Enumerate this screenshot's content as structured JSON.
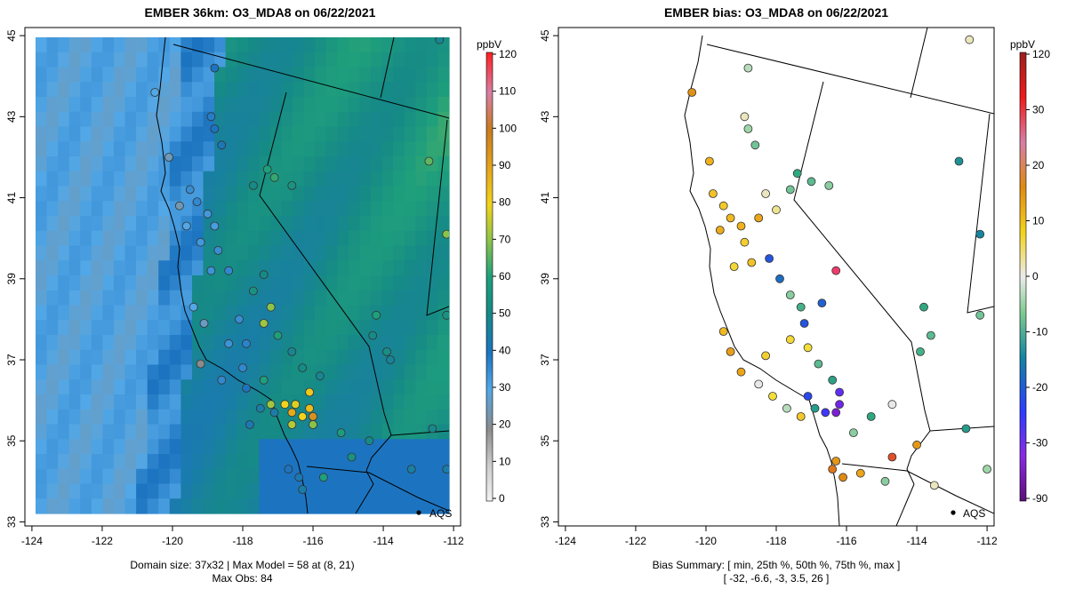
{
  "chart_data": [
    {
      "type": "heatmap",
      "title": "EMBER 36km: O3_MDA8 on 06/22/2021",
      "x_ticks": [
        "-124",
        "-122",
        "-120",
        "-118",
        "-116",
        "-114",
        "-112"
      ],
      "y_ticks": [
        "33",
        "35",
        "37",
        "39",
        "41",
        "43",
        "45"
      ],
      "xlim": [
        -124.2,
        -111.8
      ],
      "ylim": [
        32.9,
        45.2
      ],
      "colorbar": {
        "unit": "ppbV",
        "ticks": [
          "0",
          "10",
          "20",
          "30",
          "40",
          "50",
          "60",
          "70",
          "80",
          "90",
          "100",
          "110",
          "120"
        ],
        "range": [
          0,
          120
        ]
      },
      "legend": "AQS",
      "footer_line1": "Domain size: 37x32 | Max Model = 58 at (8, 21)",
      "footer_line2": "Max Obs: 84",
      "domain_size": [
        37,
        32
      ],
      "max_model": 58,
      "max_obs": 84,
      "sites": [
        {
          "lon": -120.5,
          "lat": 43.6,
          "v": 30
        },
        {
          "lon": -118.8,
          "lat": 44.2,
          "v": 40
        },
        {
          "lon": -118.9,
          "lat": 43.0,
          "v": 38
        },
        {
          "lon": -118.8,
          "lat": 42.7,
          "v": 40
        },
        {
          "lon": -118.6,
          "lat": 42.3,
          "v": 42
        },
        {
          "lon": -119.5,
          "lat": 41.2,
          "v": 35
        },
        {
          "lon": -119.3,
          "lat": 40.9,
          "v": 36
        },
        {
          "lon": -119.0,
          "lat": 40.6,
          "v": 33
        },
        {
          "lon": -118.8,
          "lat": 40.3,
          "v": 32
        },
        {
          "lon": -119.6,
          "lat": 40.3,
          "v": 30
        },
        {
          "lon": -119.2,
          "lat": 39.9,
          "v": 33
        },
        {
          "lon": -118.7,
          "lat": 39.7,
          "v": 35
        },
        {
          "lon": -118.9,
          "lat": 39.2,
          "v": 34
        },
        {
          "lon": -118.4,
          "lat": 39.2,
          "v": 36
        },
        {
          "lon": -117.4,
          "lat": 39.1,
          "v": 50
        },
        {
          "lon": -117.7,
          "lat": 38.7,
          "v": 52
        },
        {
          "lon": -117.2,
          "lat": 38.3,
          "v": 60
        },
        {
          "lon": -117.4,
          "lat": 37.9,
          "v": 62
        },
        {
          "lon": -116.6,
          "lat": 37.2,
          "v": 48
        },
        {
          "lon": -118.1,
          "lat": 38.0,
          "v": 35
        },
        {
          "lon": -117.9,
          "lat": 37.4,
          "v": 37
        },
        {
          "lon": -117.0,
          "lat": 37.6,
          "v": 55
        },
        {
          "lon": -116.3,
          "lat": 36.8,
          "v": 50
        },
        {
          "lon": -116.1,
          "lat": 36.2,
          "v": 72
        },
        {
          "lon": -116.1,
          "lat": 35.8,
          "v": 75
        },
        {
          "lon": -116.3,
          "lat": 35.6,
          "v": 70
        },
        {
          "lon": -116.6,
          "lat": 35.7,
          "v": 78
        },
        {
          "lon": -116.8,
          "lat": 35.9,
          "v": 70
        },
        {
          "lon": -116.5,
          "lat": 35.9,
          "v": 68
        },
        {
          "lon": -116.0,
          "lat": 35.6,
          "v": 84
        },
        {
          "lon": -117.2,
          "lat": 35.9,
          "v": 62
        },
        {
          "lon": -117.5,
          "lat": 35.8,
          "v": 44
        },
        {
          "lon": -117.9,
          "lat": 36.3,
          "v": 40
        },
        {
          "lon": -118.6,
          "lat": 36.5,
          "v": 36
        },
        {
          "lon": -117.4,
          "lat": 36.5,
          "v": 55
        },
        {
          "lon": -116.6,
          "lat": 35.4,
          "v": 64
        },
        {
          "lon": -116.0,
          "lat": 35.4,
          "v": 60
        },
        {
          "lon": -116.4,
          "lat": 34.1,
          "v": 42
        },
        {
          "lon": -116.3,
          "lat": 33.8,
          "v": 44
        },
        {
          "lon": -116.7,
          "lat": 34.3,
          "v": 40
        },
        {
          "lon": -115.7,
          "lat": 34.1,
          "v": 55
        },
        {
          "lon": -114.9,
          "lat": 34.6,
          "v": 52
        },
        {
          "lon": -115.2,
          "lat": 35.2,
          "v": 54
        },
        {
          "lon": -114.4,
          "lat": 35.0,
          "v": 50
        },
        {
          "lon": -115.8,
          "lat": 36.6,
          "v": 48
        },
        {
          "lon": -114.3,
          "lat": 37.6,
          "v": 50
        },
        {
          "lon": -113.9,
          "lat": 37.2,
          "v": 51
        },
        {
          "lon": -114.2,
          "lat": 38.1,
          "v": 55
        },
        {
          "lon": -112.7,
          "lat": 41.9,
          "v": 58
        },
        {
          "lon": -112.2,
          "lat": 40.1,
          "v": 60
        },
        {
          "lon": -112.4,
          "lat": 44.9,
          "v": 48
        },
        {
          "lon": -112.2,
          "lat": 38.1,
          "v": 52
        },
        {
          "lon": -113.2,
          "lat": 34.3,
          "v": 45
        },
        {
          "lon": -112.2,
          "lat": 34.3,
          "v": 44
        },
        {
          "lon": -112.6,
          "lat": 35.3,
          "v": 49
        },
        {
          "lon": -113.8,
          "lat": 37.0,
          "v": 47
        },
        {
          "lon": -117.3,
          "lat": 41.7,
          "v": 55
        },
        {
          "lon": -117.7,
          "lat": 41.3,
          "v": 50
        },
        {
          "lon": -116.6,
          "lat": 41.3,
          "v": 52
        },
        {
          "lon": -117.1,
          "lat": 41.5,
          "v": 56
        },
        {
          "lon": -120.1,
          "lat": 42.0,
          "v": 25
        },
        {
          "lon": -119.8,
          "lat": 40.8,
          "v": 24
        },
        {
          "lon": -119.4,
          "lat": 38.3,
          "v": 30
        },
        {
          "lon": -119.1,
          "lat": 37.9,
          "v": 26
        },
        {
          "lon": -118.4,
          "lat": 37.4,
          "v": 34
        },
        {
          "lon": -119.2,
          "lat": 36.9,
          "v": 20
        },
        {
          "lon": -118.0,
          "lat": 36.8,
          "v": 36
        },
        {
          "lon": -117.8,
          "lat": 35.4,
          "v": 42
        },
        {
          "lon": -117.1,
          "lat": 35.7,
          "v": 44
        }
      ]
    },
    {
      "type": "scatter",
      "title": "EMBER bias: O3_MDA8 on 06/22/2021",
      "x_ticks": [
        "-124",
        "-122",
        "-120",
        "-118",
        "-116",
        "-114",
        "-112"
      ],
      "y_ticks": [
        "33",
        "35",
        "37",
        "39",
        "41",
        "43",
        "45"
      ],
      "xlim": [
        -124.2,
        -111.8
      ],
      "ylim": [
        32.9,
        45.2
      ],
      "colorbar": {
        "unit": "ppbV",
        "ticks": [
          "-90",
          "-30",
          "-20",
          "-10",
          "0",
          "10",
          "20",
          "30",
          "120"
        ]
      },
      "legend": "AQS",
      "footer_line1": "Bias Summary: [ min, 25th %, 50th %, 75th %, max ]",
      "footer_line2": "[ -32,   -6.6,   -3,   3.5,   26 ]",
      "bias_summary": {
        "min": -32,
        "p25": -6.6,
        "p50": -3,
        "p75": 3.5,
        "max": 26
      },
      "sites": [
        {
          "lon": -120.4,
          "lat": 43.6,
          "v": 15
        },
        {
          "lon": -118.8,
          "lat": 44.2,
          "v": -2
        },
        {
          "lon": -118.9,
          "lat": 43.0,
          "v": 1
        },
        {
          "lon": -118.8,
          "lat": 42.7,
          "v": -3
        },
        {
          "lon": -118.6,
          "lat": 42.3,
          "v": -5
        },
        {
          "lon": -119.9,
          "lat": 41.9,
          "v": 10
        },
        {
          "lon": -119.8,
          "lat": 41.1,
          "v": 8
        },
        {
          "lon": -119.5,
          "lat": 40.8,
          "v": 7
        },
        {
          "lon": -119.3,
          "lat": 40.5,
          "v": 9
        },
        {
          "lon": -119.0,
          "lat": 40.3,
          "v": 10
        },
        {
          "lon": -119.6,
          "lat": 40.2,
          "v": 11
        },
        {
          "lon": -118.9,
          "lat": 39.9,
          "v": 6
        },
        {
          "lon": -118.7,
          "lat": 39.4,
          "v": 8
        },
        {
          "lon": -119.2,
          "lat": 39.3,
          "v": 5
        },
        {
          "lon": -118.2,
          "lat": 39.5,
          "v": -18
        },
        {
          "lon": -117.9,
          "lat": 39.0,
          "v": -16
        },
        {
          "lon": -117.6,
          "lat": 38.6,
          "v": -4
        },
        {
          "lon": -117.3,
          "lat": 38.3,
          "v": -7
        },
        {
          "lon": -117.2,
          "lat": 37.9,
          "v": -18
        },
        {
          "lon": -116.7,
          "lat": 38.4,
          "v": -17
        },
        {
          "lon": -116.3,
          "lat": 39.2,
          "v": 26
        },
        {
          "lon": -117.6,
          "lat": 37.5,
          "v": 5
        },
        {
          "lon": -117.1,
          "lat": 37.3,
          "v": 4
        },
        {
          "lon": -116.8,
          "lat": 36.9,
          "v": -6
        },
        {
          "lon": -116.4,
          "lat": 36.5,
          "v": -9
        },
        {
          "lon": -116.2,
          "lat": 36.2,
          "v": -25
        },
        {
          "lon": -116.2,
          "lat": 35.9,
          "v": -28
        },
        {
          "lon": -116.3,
          "lat": 35.7,
          "v": -32
        },
        {
          "lon": -116.6,
          "lat": 35.7,
          "v": -22
        },
        {
          "lon": -116.9,
          "lat": 35.8,
          "v": -10
        },
        {
          "lon": -117.1,
          "lat": 36.1,
          "v": -19
        },
        {
          "lon": -117.3,
          "lat": 35.6,
          "v": 7
        },
        {
          "lon": -117.7,
          "lat": 35.8,
          "v": -2
        },
        {
          "lon": -118.1,
          "lat": 36.1,
          "v": 4
        },
        {
          "lon": -118.5,
          "lat": 36.4,
          "v": 0
        },
        {
          "lon": -119.0,
          "lat": 36.7,
          "v": 12
        },
        {
          "lon": -119.3,
          "lat": 37.2,
          "v": 13
        },
        {
          "lon": -119.5,
          "lat": 37.7,
          "v": 9
        },
        {
          "lon": -118.3,
          "lat": 37.1,
          "v": 6
        },
        {
          "lon": -116.3,
          "lat": 34.5,
          "v": 14
        },
        {
          "lon": -116.4,
          "lat": 34.3,
          "v": 18
        },
        {
          "lon": -116.1,
          "lat": 34.1,
          "v": 16
        },
        {
          "lon": -115.6,
          "lat": 34.2,
          "v": 12
        },
        {
          "lon": -114.7,
          "lat": 34.6,
          "v": 22
        },
        {
          "lon": -114.0,
          "lat": 34.9,
          "v": 14
        },
        {
          "lon": -115.8,
          "lat": 35.2,
          "v": -4
        },
        {
          "lon": -115.3,
          "lat": 35.6,
          "v": -8
        },
        {
          "lon": -114.7,
          "lat": 35.9,
          "v": 0
        },
        {
          "lon": -113.8,
          "lat": 38.3,
          "v": -8
        },
        {
          "lon": -113.6,
          "lat": 37.6,
          "v": -6
        },
        {
          "lon": -113.9,
          "lat": 37.2,
          "v": -7
        },
        {
          "lon": -112.8,
          "lat": 41.9,
          "v": -12
        },
        {
          "lon": -112.2,
          "lat": 40.1,
          "v": -14
        },
        {
          "lon": -112.5,
          "lat": 44.9,
          "v": 1
        },
        {
          "lon": -112.2,
          "lat": 38.1,
          "v": -5
        },
        {
          "lon": -112.6,
          "lat": 35.3,
          "v": -10
        },
        {
          "lon": -112.0,
          "lat": 34.3,
          "v": -3
        },
        {
          "lon": -113.5,
          "lat": 33.9,
          "v": 1
        },
        {
          "lon": -114.9,
          "lat": 34.0,
          "v": -4
        },
        {
          "lon": -117.4,
          "lat": 41.6,
          "v": -8
        },
        {
          "lon": -117.6,
          "lat": 41.2,
          "v": -5
        },
        {
          "lon": -117.0,
          "lat": 41.4,
          "v": -6
        },
        {
          "lon": -116.5,
          "lat": 41.3,
          "v": -4
        },
        {
          "lon": -118.3,
          "lat": 41.1,
          "v": 1
        },
        {
          "lon": -118.0,
          "lat": 40.7,
          "v": 2
        },
        {
          "lon": -118.5,
          "lat": 40.5,
          "v": 12
        }
      ]
    }
  ]
}
